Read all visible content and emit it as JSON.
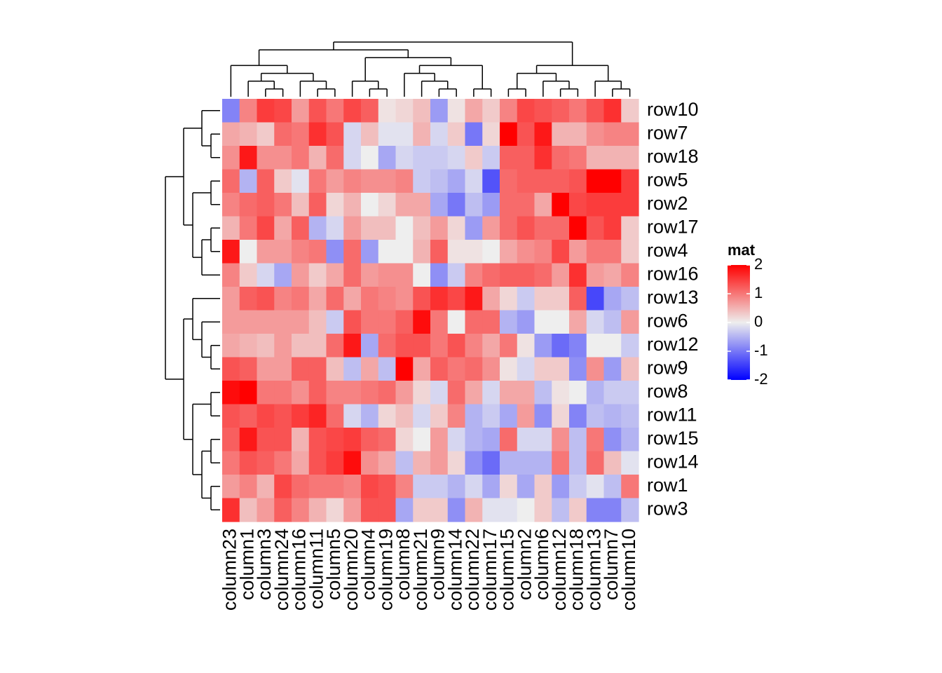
{
  "chart_data": {
    "type": "heatmap",
    "rows": [
      "row10",
      "row7",
      "row18",
      "row5",
      "row2",
      "row17",
      "row4",
      "row16",
      "row13",
      "row6",
      "row12",
      "row9",
      "row8",
      "row11",
      "row15",
      "row14",
      "row1",
      "row3"
    ],
    "columns": [
      "column23",
      "column1",
      "column3",
      "column24",
      "column16",
      "column11",
      "column5",
      "column20",
      "column4",
      "column19",
      "column8",
      "column21",
      "column9",
      "column14",
      "column22",
      "column17",
      "column15",
      "column2",
      "column6",
      "column12",
      "column18",
      "column13",
      "column7",
      "column10"
    ],
    "values": [
      [
        -0.9,
        0.9,
        1.5,
        1.4,
        0.7,
        1.3,
        1.0,
        1.4,
        1.2,
        0.1,
        0.2,
        0.4,
        -0.7,
        0.1,
        0.6,
        0.3,
        0.9,
        1.4,
        1.3,
        1.2,
        1.0,
        1.3,
        1.6,
        0.3
      ],
      [
        0.6,
        0.5,
        0.3,
        1.1,
        1.0,
        1.6,
        1.3,
        -0.2,
        0.4,
        -0.1,
        -0.1,
        0.5,
        -0.2,
        0.3,
        -1.0,
        0.2,
        2.1,
        1.3,
        1.8,
        0.5,
        0.5,
        0.8,
        0.9,
        0.9
      ],
      [
        0.8,
        1.8,
        0.8,
        0.8,
        1.0,
        0.5,
        1.1,
        -0.2,
        0.0,
        -0.6,
        -0.2,
        -0.3,
        -0.3,
        -0.2,
        0.3,
        -0.3,
        1.2,
        1.2,
        1.6,
        1.1,
        1.0,
        0.5,
        0.5,
        0.5
      ],
      [
        1.1,
        -0.5,
        1.2,
        0.3,
        -0.1,
        1.0,
        0.7,
        0.9,
        0.8,
        0.8,
        0.9,
        -0.3,
        -0.4,
        -0.6,
        -0.2,
        -1.3,
        1.1,
        1.2,
        1.2,
        1.2,
        1.3,
        2.1,
        2.1,
        1.5
      ],
      [
        0.9,
        1.1,
        1.2,
        1.0,
        0.4,
        1.2,
        0.2,
        0.5,
        0.0,
        0.2,
        0.6,
        0.6,
        -0.6,
        -1.0,
        -0.4,
        -0.7,
        1.1,
        1.1,
        0.6,
        2.0,
        1.4,
        1.5,
        1.5,
        1.5
      ],
      [
        0.5,
        1.0,
        1.4,
        0.6,
        1.2,
        -0.5,
        -0.2,
        0.7,
        0.4,
        0.4,
        0.0,
        0.4,
        0.7,
        0.2,
        -0.7,
        0.7,
        1.1,
        1.3,
        1.1,
        1.1,
        2.1,
        1.3,
        1.5,
        0.3
      ],
      [
        1.8,
        0.0,
        0.7,
        0.7,
        0.9,
        1.0,
        -0.8,
        1.1,
        -0.7,
        0.0,
        0.0,
        0.5,
        1.2,
        0.1,
        0.1,
        0.0,
        0.6,
        0.8,
        0.9,
        1.4,
        0.7,
        1.0,
        1.0,
        0.3
      ],
      [
        0.9,
        0.3,
        -0.2,
        -0.6,
        0.7,
        0.3,
        0.6,
        1.1,
        0.7,
        0.8,
        0.8,
        0.0,
        -0.8,
        -0.3,
        0.9,
        1.1,
        1.2,
        1.2,
        1.1,
        0.7,
        1.6,
        0.7,
        0.6,
        0.9
      ],
      [
        0.7,
        1.2,
        1.3,
        0.9,
        1.0,
        0.6,
        1.1,
        0.6,
        1.0,
        0.9,
        0.8,
        1.3,
        1.6,
        1.4,
        1.8,
        0.6,
        0.2,
        -0.3,
        0.3,
        0.3,
        1.2,
        -1.4,
        -0.6,
        -0.4
      ],
      [
        0.7,
        0.7,
        0.7,
        0.7,
        0.7,
        0.4,
        -0.3,
        1.3,
        1.0,
        1.0,
        1.2,
        1.9,
        1.0,
        0.0,
        1.1,
        1.1,
        -0.5,
        -0.7,
        0.0,
        0.0,
        0.6,
        -0.2,
        -0.4,
        0.7
      ],
      [
        0.6,
        0.5,
        0.4,
        0.7,
        0.4,
        0.4,
        1.1,
        1.8,
        -0.6,
        1.1,
        1.3,
        1.3,
        1.0,
        1.3,
        0.9,
        0.6,
        1.0,
        0.1,
        -0.7,
        -1.1,
        -0.9,
        0.0,
        0.0,
        -0.3
      ],
      [
        1.3,
        1.2,
        0.7,
        0.7,
        1.2,
        1.2,
        0.4,
        -0.4,
        0.6,
        -0.4,
        2.0,
        0.6,
        1.2,
        1.0,
        1.1,
        0.8,
        0.1,
        -0.2,
        0.3,
        0.3,
        -0.8,
        0.8,
        -0.7,
        0.4
      ],
      [
        1.9,
        2.1,
        1.0,
        1.0,
        0.8,
        1.2,
        0.9,
        0.9,
        1.0,
        1.1,
        0.7,
        0.2,
        -0.2,
        1.1,
        0.6,
        -0.2,
        0.6,
        0.6,
        -0.4,
        0.1,
        0.0,
        -0.5,
        -0.3,
        -0.3
      ],
      [
        1.3,
        1.2,
        1.4,
        1.3,
        1.5,
        1.7,
        1.1,
        -0.2,
        -0.5,
        0.2,
        0.4,
        -0.2,
        0.3,
        0.9,
        -0.5,
        -0.3,
        -0.6,
        0.7,
        -0.8,
        0.2,
        -0.9,
        -0.4,
        -0.5,
        -0.4
      ],
      [
        1.2,
        1.8,
        1.3,
        1.3,
        0.5,
        1.3,
        1.4,
        1.5,
        1.2,
        1.1,
        0.2,
        0.0,
        0.7,
        -0.2,
        -0.5,
        -0.6,
        1.1,
        -0.2,
        -0.2,
        0.8,
        -0.4,
        1.0,
        -0.8,
        -0.5
      ],
      [
        1.0,
        1.3,
        1.2,
        1.0,
        0.6,
        1.3,
        1.5,
        1.9,
        0.8,
        0.6,
        -0.4,
        0.5,
        0.7,
        0.2,
        -0.8,
        -1.1,
        -0.5,
        -0.5,
        -0.5,
        1.0,
        -0.4,
        1.1,
        0.4,
        -0.1
      ],
      [
        0.7,
        0.9,
        0.5,
        1.4,
        1.1,
        1.0,
        1.0,
        0.9,
        1.4,
        1.3,
        0.9,
        -0.3,
        -0.3,
        -0.5,
        -0.2,
        -0.6,
        0.2,
        -0.6,
        0.3,
        -0.7,
        -0.3,
        -0.1,
        -0.4,
        1.0
      ],
      [
        1.6,
        0.4,
        0.7,
        1.2,
        0.9,
        0.5,
        0.2,
        0.7,
        1.3,
        1.3,
        -0.6,
        0.3,
        0.3,
        -0.8,
        0.5,
        -0.1,
        -0.1,
        0.0,
        0.3,
        -0.4,
        0.3,
        -0.9,
        -0.9,
        -0.4
      ]
    ],
    "color_scale": {
      "min": -2,
      "mid": 0,
      "max": 2,
      "low_color": "#0000ff",
      "mid_color": "#eeeeee",
      "high_color": "#ff0000"
    },
    "legend": {
      "title": "mat",
      "ticks": [
        "2",
        "1",
        "0",
        "-1",
        "-2"
      ],
      "position": "right"
    },
    "column_dendrogram": true,
    "row_dendrogram": true
  }
}
